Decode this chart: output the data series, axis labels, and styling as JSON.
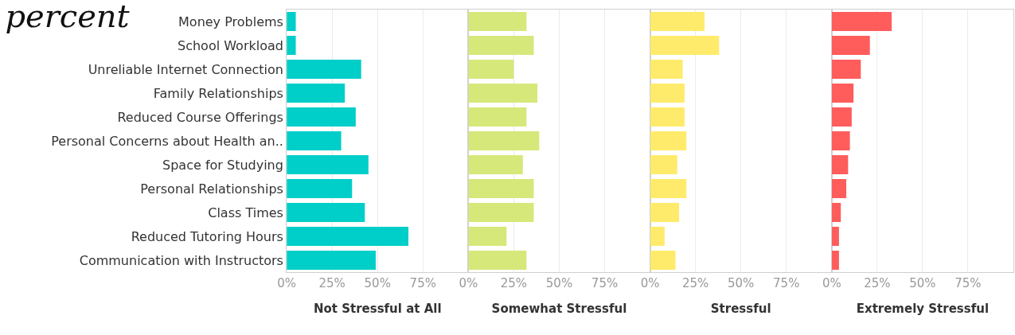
{
  "chart_data": [
    {
      "type": "bar",
      "orientation": "horizontal",
      "title": "percent",
      "xlabel": "Not Stressful at All",
      "categories": [
        "Money Problems",
        "School Workload",
        "Unreliable Internet Connection",
        "Family Relationships",
        "Reduced Course Offerings",
        "Personal Concerns about Health an..",
        "Space for Studying",
        "Personal Relationships",
        "Class Times",
        "Reduced Tutoring Hours",
        "Communication with Instructors"
      ],
      "values": [
        5,
        5,
        41,
        32,
        38,
        30,
        45,
        36,
        43,
        67,
        49
      ],
      "color": "#00cec9",
      "xlim": [
        0,
        100
      ],
      "xticks": [
        {
          "value": 0,
          "label": "0%"
        },
        {
          "value": 25,
          "label": "25%"
        },
        {
          "value": 50,
          "label": "50%"
        },
        {
          "value": 75,
          "label": "75%"
        }
      ],
      "grid": "x"
    },
    {
      "type": "bar",
      "orientation": "horizontal",
      "xlabel": "Somewhat Stressful",
      "values": [
        32,
        36,
        25,
        38,
        32,
        39,
        30,
        36,
        36,
        21,
        32
      ],
      "color": "#d6e87a",
      "xlim": [
        0,
        100
      ],
      "xticks": [
        {
          "value": 0,
          "label": "0%"
        },
        {
          "value": 25,
          "label": "25%"
        },
        {
          "value": 50,
          "label": "50%"
        },
        {
          "value": 75,
          "label": "75%"
        }
      ],
      "grid": "x",
      "tick_labels": "x"
    },
    {
      "type": "bar",
      "orientation": "horizontal",
      "xlabel": "Stressful",
      "values": [
        30,
        38,
        18,
        19,
        19,
        20,
        15,
        20,
        16,
        8,
        14
      ],
      "color": "#ffeb6b",
      "xlim": [
        0,
        100
      ],
      "xticks": [
        {
          "value": 0,
          "label": "0%"
        },
        {
          "value": 25,
          "label": "25%"
        },
        {
          "value": 50,
          "label": "50%"
        },
        {
          "value": 75,
          "label": "75%"
        }
      ],
      "grid": "x",
      "tick_labels": "x"
    },
    {
      "type": "bar",
      "orientation": "horizontal",
      "xlabel": "Extremely Stressful",
      "values": [
        33,
        21,
        16,
        12,
        11,
        10,
        9,
        8,
        5,
        4,
        4
      ],
      "color": "#ff5c5c",
      "xlim": [
        0,
        100
      ],
      "xticks": [
        {
          "value": 0,
          "label": "0%"
        },
        {
          "value": 25,
          "label": "25%"
        },
        {
          "value": 50,
          "label": "50%"
        },
        {
          "value": 75,
          "label": "75%"
        }
      ],
      "grid": "x",
      "tick_labels": "x"
    }
  ]
}
